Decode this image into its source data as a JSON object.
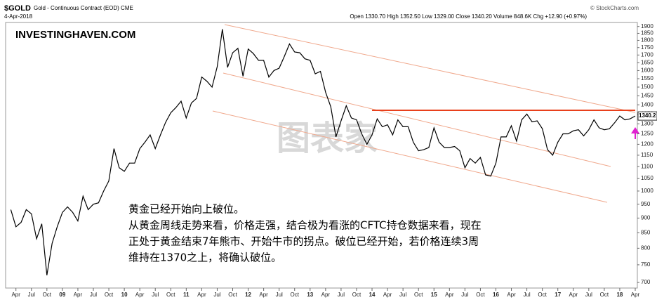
{
  "chart_data": {
    "type": "line",
    "symbol": "$GOLD",
    "title": "Gold - Continuous Contract (EOD) CME",
    "date": "4-Apr-2018",
    "quote": "Open 1330.70  High 1352.50  Low 1329.00  Close 1340.20  Volume 848.6K  Chg +12.90 (+0.97%)",
    "credit": "© StockCharts.com",
    "brand": "INVESTINGHAVEN.COM",
    "watermark": "图表家",
    "annotation_lines": [
      "黄金已经开始向上破位。",
      "从黄金周线走势来看，价格走强，结合极为看涨的CFTC持仓数据来看，现在",
      "正处于黄金结束7年熊市、开始牛市的拐点。破位已经开始，若价格连续3周",
      "维持在1370之上，将确认破位。"
    ],
    "last_price": 1340.2,
    "color": "#000000",
    "x": [
      "2008-03",
      "2008-04",
      "2008-05",
      "2008-06",
      "2008-07",
      "2008-08",
      "2008-09",
      "2008-10",
      "2008-11",
      "2008-12",
      "2009-01",
      "2009-02",
      "2009-03",
      "2009-04",
      "2009-05",
      "2009-06",
      "2009-07",
      "2009-08",
      "2009-09",
      "2009-10",
      "2009-11",
      "2009-12",
      "2010-01",
      "2010-02",
      "2010-03",
      "2010-04",
      "2010-05",
      "2010-06",
      "2010-07",
      "2010-08",
      "2010-09",
      "2010-10",
      "2010-11",
      "2010-12",
      "2011-01",
      "2011-02",
      "2011-03",
      "2011-04",
      "2011-05",
      "2011-06",
      "2011-07",
      "2011-08",
      "2011-09",
      "2011-10",
      "2011-11",
      "2011-12",
      "2012-01",
      "2012-02",
      "2012-03",
      "2012-04",
      "2012-05",
      "2012-06",
      "2012-07",
      "2012-08",
      "2012-09",
      "2012-10",
      "2012-11",
      "2012-12",
      "2013-01",
      "2013-02",
      "2013-03",
      "2013-04",
      "2013-05",
      "2013-06",
      "2013-07",
      "2013-08",
      "2013-09",
      "2013-10",
      "2013-11",
      "2013-12",
      "2014-01",
      "2014-02",
      "2014-03",
      "2014-04",
      "2014-05",
      "2014-06",
      "2014-07",
      "2014-08",
      "2014-09",
      "2014-10",
      "2014-11",
      "2014-12",
      "2015-01",
      "2015-02",
      "2015-03",
      "2015-04",
      "2015-05",
      "2015-06",
      "2015-07",
      "2015-08",
      "2015-09",
      "2015-10",
      "2015-11",
      "2015-12",
      "2016-01",
      "2016-02",
      "2016-03",
      "2016-04",
      "2016-05",
      "2016-06",
      "2016-07",
      "2016-08",
      "2016-09",
      "2016-10",
      "2016-11",
      "2016-12",
      "2017-01",
      "2017-02",
      "2017-03",
      "2017-04",
      "2017-05",
      "2017-06",
      "2017-07",
      "2017-08",
      "2017-09",
      "2017-10",
      "2017-11",
      "2017-12",
      "2018-01",
      "2018-02",
      "2018-03",
      "2018-04"
    ],
    "values": [
      930,
      870,
      885,
      930,
      915,
      830,
      880,
      720,
      815,
      870,
      920,
      940,
      920,
      890,
      980,
      930,
      950,
      955,
      1000,
      1040,
      1180,
      1095,
      1080,
      1115,
      1115,
      1180,
      1210,
      1245,
      1180,
      1245,
      1307,
      1357,
      1385,
      1420,
      1330,
      1410,
      1435,
      1560,
      1535,
      1500,
      1625,
      1880,
      1620,
      1715,
      1745,
      1565,
      1740,
      1710,
      1665,
      1665,
      1560,
      1600,
      1615,
      1690,
      1775,
      1720,
      1715,
      1675,
      1665,
      1580,
      1595,
      1470,
      1390,
      1235,
      1315,
      1395,
      1330,
      1320,
      1250,
      1200,
      1245,
      1325,
      1285,
      1295,
      1245,
      1320,
      1285,
      1285,
      1210,
      1170,
      1175,
      1185,
      1280,
      1210,
      1185,
      1185,
      1190,
      1170,
      1095,
      1135,
      1115,
      1140,
      1065,
      1060,
      1115,
      1235,
      1235,
      1290,
      1215,
      1320,
      1350,
      1310,
      1315,
      1275,
      1175,
      1150,
      1210,
      1250,
      1250,
      1265,
      1270,
      1240,
      1270,
      1320,
      1280,
      1270,
      1275,
      1305,
      1340,
      1320,
      1325,
      1340
    ],
    "xlim": [
      "2008-02",
      "2018-04"
    ],
    "xticks": [
      {
        "value": "2008-04",
        "label": "Apr"
      },
      {
        "value": "2008-07",
        "label": "Jul"
      },
      {
        "value": "2008-10",
        "label": "Oct"
      },
      {
        "value": "2009-01",
        "label": "09"
      },
      {
        "value": "2009-04",
        "label": "Apr"
      },
      {
        "value": "2009-07",
        "label": "Jul"
      },
      {
        "value": "2009-10",
        "label": "Oct"
      },
      {
        "value": "2010-01",
        "label": "10"
      },
      {
        "value": "2010-04",
        "label": "Apr"
      },
      {
        "value": "2010-07",
        "label": "Jul"
      },
      {
        "value": "2010-10",
        "label": "Oct"
      },
      {
        "value": "2011-01",
        "label": "11"
      },
      {
        "value": "2011-04",
        "label": "Apr"
      },
      {
        "value": "2011-07",
        "label": "Jul"
      },
      {
        "value": "2011-10",
        "label": "Oct"
      },
      {
        "value": "2012-01",
        "label": "12"
      },
      {
        "value": "2012-04",
        "label": "Apr"
      },
      {
        "value": "2012-07",
        "label": "Jul"
      },
      {
        "value": "2012-10",
        "label": "Oct"
      },
      {
        "value": "2013-01",
        "label": "13"
      },
      {
        "value": "2013-04",
        "label": "Apr"
      },
      {
        "value": "2013-07",
        "label": "Jul"
      },
      {
        "value": "2013-10",
        "label": "Oct"
      },
      {
        "value": "2014-01",
        "label": "14"
      },
      {
        "value": "2014-04",
        "label": "Apr"
      },
      {
        "value": "2014-07",
        "label": "Jul"
      },
      {
        "value": "2014-10",
        "label": "Oct"
      },
      {
        "value": "2015-01",
        "label": "15"
      },
      {
        "value": "2015-04",
        "label": "Apr"
      },
      {
        "value": "2015-07",
        "label": "Jul"
      },
      {
        "value": "2015-10",
        "label": "Oct"
      },
      {
        "value": "2016-01",
        "label": "16"
      },
      {
        "value": "2016-04",
        "label": "Apr"
      },
      {
        "value": "2016-07",
        "label": "Jul"
      },
      {
        "value": "2016-10",
        "label": "Oct"
      },
      {
        "value": "2017-01",
        "label": "17"
      },
      {
        "value": "2017-04",
        "label": "Apr"
      },
      {
        "value": "2017-07",
        "label": "Jul"
      },
      {
        "value": "2017-10",
        "label": "Oct"
      },
      {
        "value": "2018-01",
        "label": "18"
      },
      {
        "value": "2018-04",
        "label": "Apr"
      }
    ],
    "ylim": [
      685,
      1930
    ],
    "yticks": [
      700,
      750,
      800,
      850,
      900,
      950,
      1000,
      1050,
      1100,
      1150,
      1200,
      1250,
      1300,
      1350,
      1400,
      1450,
      1500,
      1550,
      1600,
      1650,
      1700,
      1750,
      1800,
      1850,
      1900
    ],
    "log_scale": true,
    "grid": false,
    "reference_line": {
      "value": 1370,
      "start": "2014-01",
      "end": "2018-04",
      "color": "#e8401c"
    }
  }
}
